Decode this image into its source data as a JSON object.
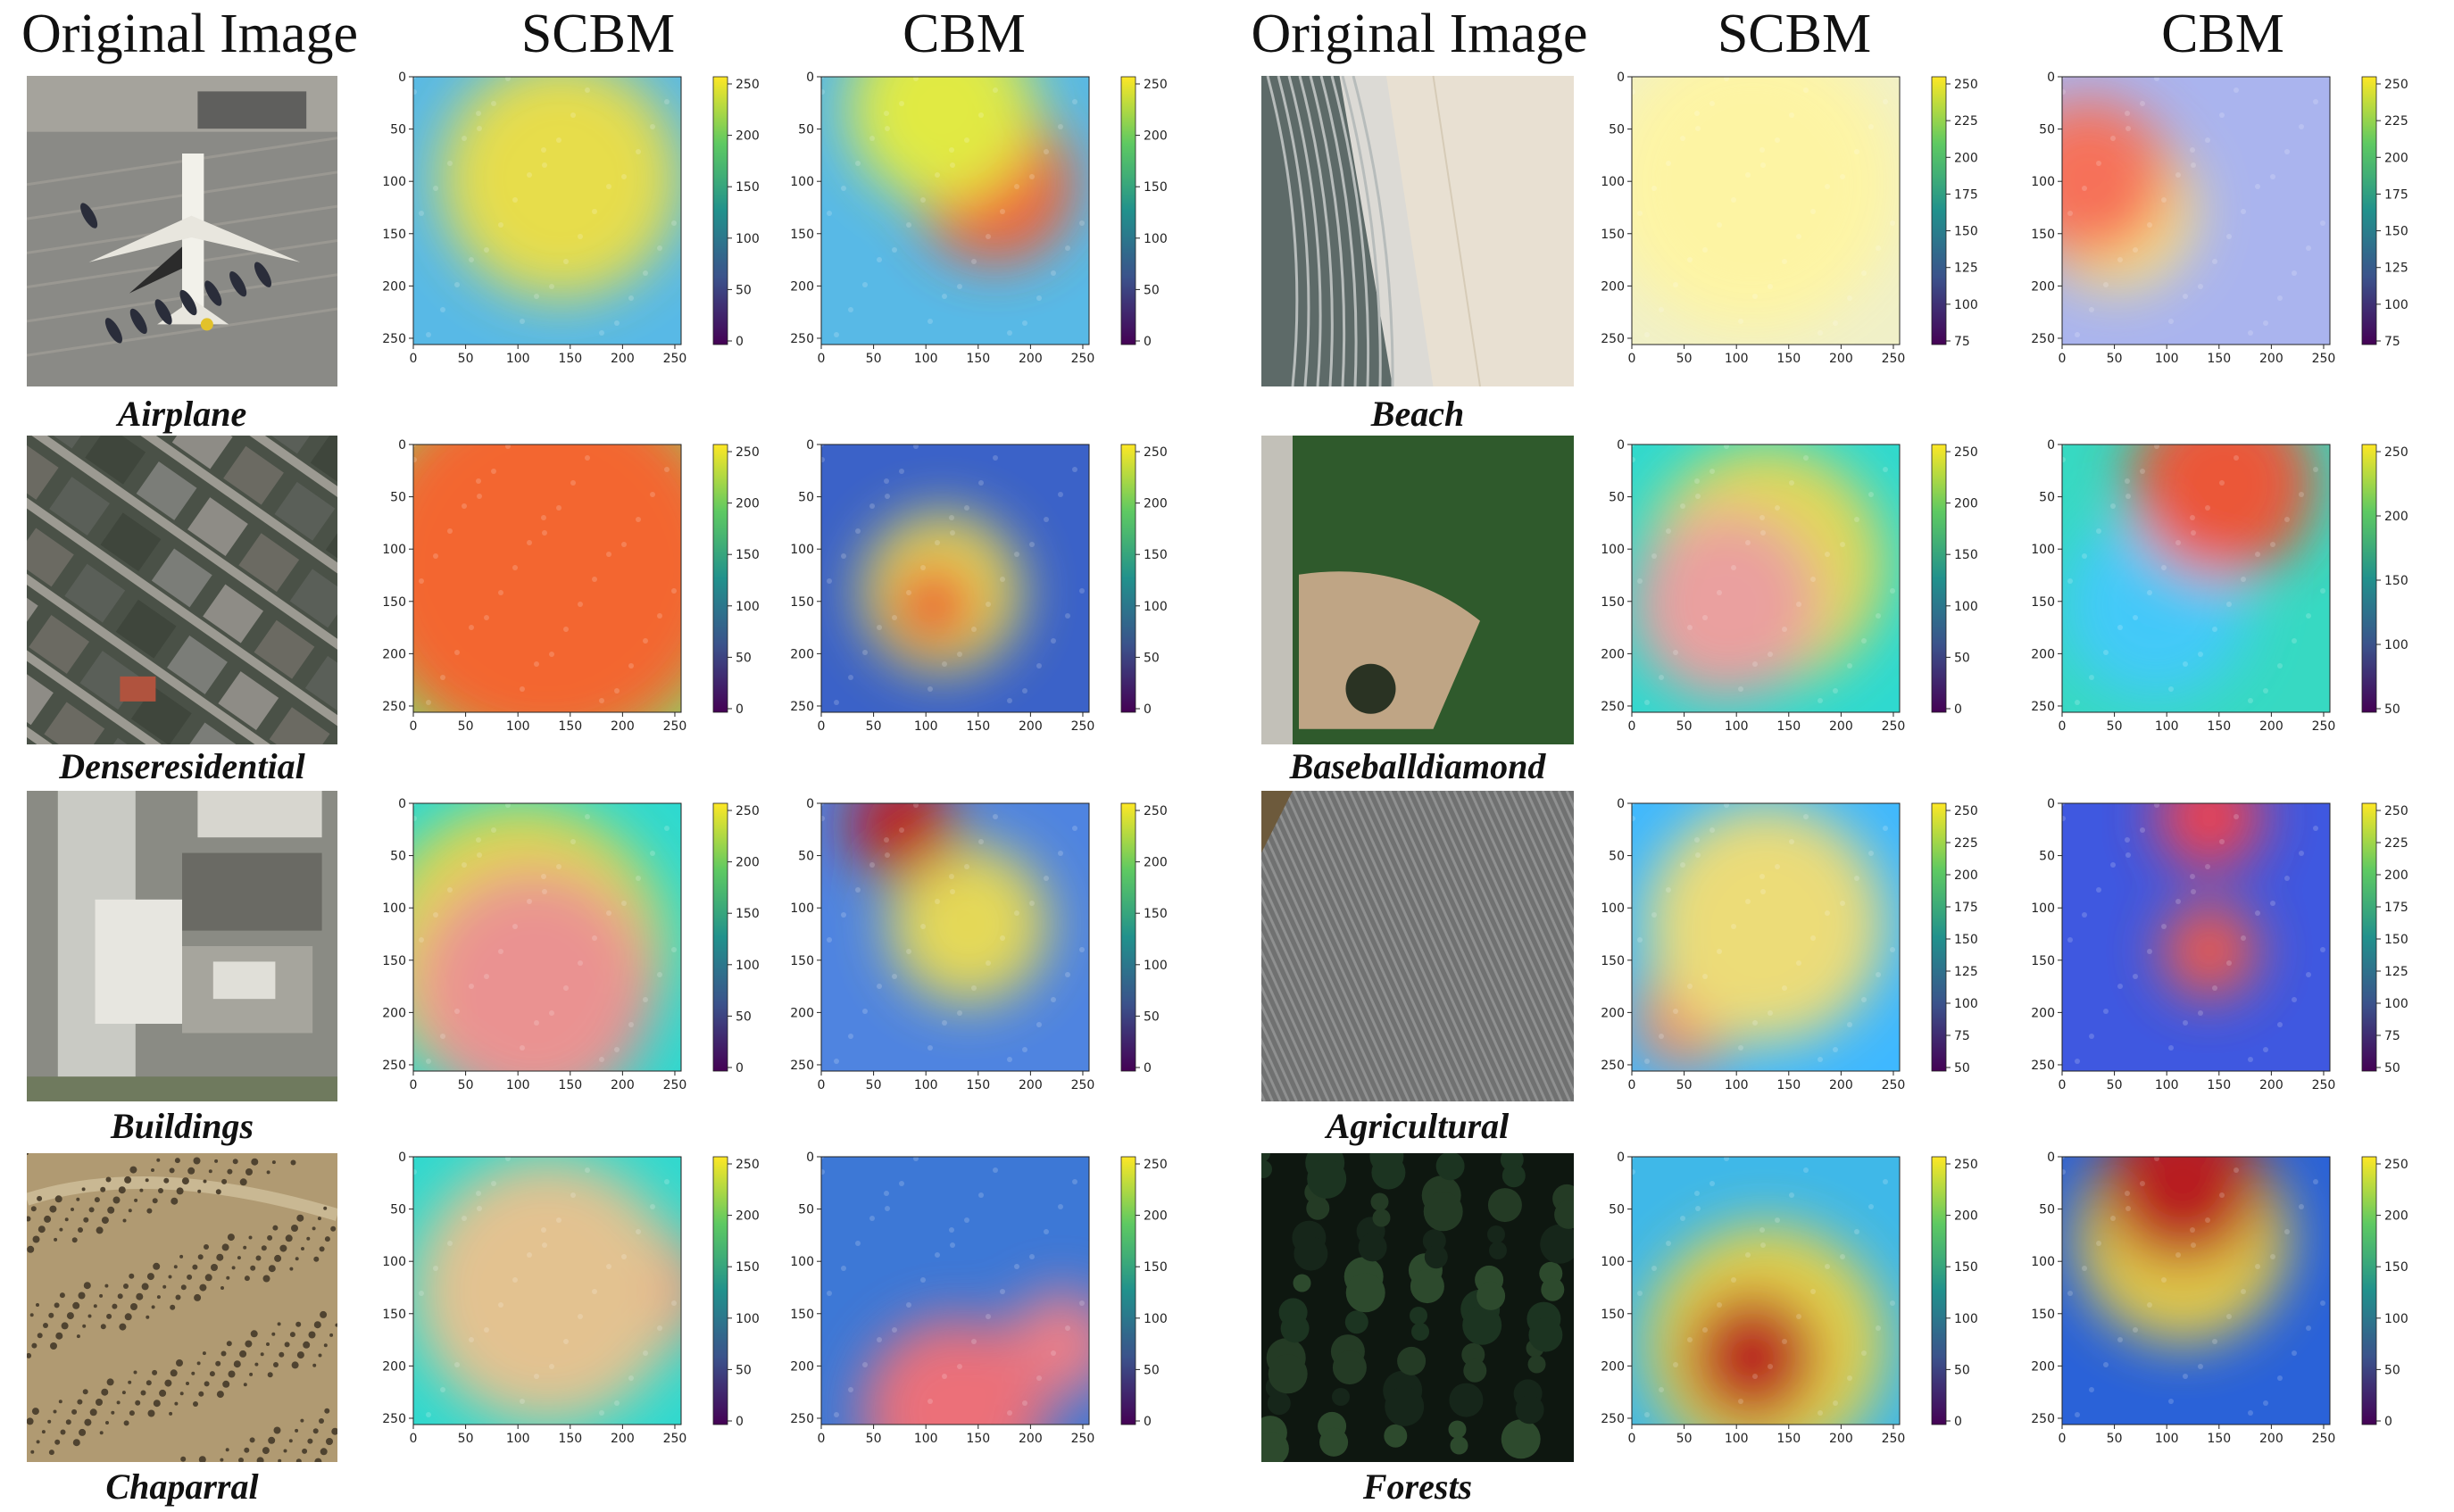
{
  "headers": {
    "left": {
      "original": "Original Image",
      "scbm": "SCBM",
      "cbm": "CBM"
    },
    "right": {
      "original": "Original Image",
      "scbm": "SCBM",
      "cbm": "CBM"
    }
  },
  "rows_left": [
    {
      "class_label": "Airplane",
      "scene": "airplane",
      "scbm": {
        "colorbar_ticks": [
          "250",
          "200",
          "150",
          "100",
          "50",
          "0"
        ],
        "x_ticks": [
          "0",
          "50",
          "100",
          "150",
          "200",
          "250"
        ],
        "y_ticks": [
          "0",
          "50",
          "100",
          "150",
          "200",
          "250"
        ]
      },
      "cbm": {
        "colorbar_ticks": [
          "250",
          "200",
          "150",
          "100",
          "50",
          "0"
        ],
        "x_ticks": [
          "0",
          "50",
          "100",
          "150",
          "200",
          "250"
        ],
        "y_ticks": [
          "0",
          "50",
          "100",
          "150",
          "200",
          "250"
        ]
      }
    },
    {
      "class_label": "Denseresidential",
      "scene": "residential",
      "scbm": {
        "colorbar_ticks": [
          "250",
          "200",
          "150",
          "100",
          "50",
          "0"
        ],
        "x_ticks": [
          "0",
          "50",
          "100",
          "150",
          "200",
          "250"
        ],
        "y_ticks": [
          "0",
          "50",
          "100",
          "150",
          "200",
          "250"
        ]
      },
      "cbm": {
        "colorbar_ticks": [
          "250",
          "200",
          "150",
          "100",
          "50",
          "0"
        ],
        "x_ticks": [
          "0",
          "50",
          "100",
          "150",
          "200",
          "250"
        ],
        "y_ticks": [
          "0",
          "50",
          "100",
          "150",
          "200",
          "250"
        ]
      }
    },
    {
      "class_label": "Buildings",
      "scene": "buildings",
      "scbm": {
        "colorbar_ticks": [
          "250",
          "200",
          "150",
          "100",
          "50",
          "0"
        ],
        "x_ticks": [
          "0",
          "50",
          "100",
          "150",
          "200",
          "250"
        ],
        "y_ticks": [
          "0",
          "50",
          "100",
          "150",
          "200",
          "250"
        ]
      },
      "cbm": {
        "colorbar_ticks": [
          "250",
          "200",
          "150",
          "100",
          "50",
          "0"
        ],
        "x_ticks": [
          "0",
          "50",
          "100",
          "150",
          "200",
          "250"
        ],
        "y_ticks": [
          "0",
          "50",
          "100",
          "150",
          "200",
          "250"
        ]
      }
    },
    {
      "class_label": "Chaparral",
      "scene": "chaparral",
      "scbm": {
        "colorbar_ticks": [
          "250",
          "200",
          "150",
          "100",
          "50",
          "0"
        ],
        "x_ticks": [
          "0",
          "50",
          "100",
          "150",
          "200",
          "250"
        ],
        "y_ticks": [
          "0",
          "50",
          "100",
          "150",
          "200",
          "250"
        ]
      },
      "cbm": {
        "colorbar_ticks": [
          "250",
          "200",
          "150",
          "100",
          "50",
          "0"
        ],
        "x_ticks": [
          "0",
          "50",
          "100",
          "150",
          "200",
          "250"
        ],
        "y_ticks": [
          "0",
          "50",
          "100",
          "150",
          "200",
          "250"
        ]
      }
    }
  ],
  "rows_right": [
    {
      "class_label": "Beach",
      "scene": "beach",
      "scbm": {
        "colorbar_ticks": [
          "250",
          "225",
          "200",
          "175",
          "150",
          "125",
          "100",
          "75"
        ],
        "x_ticks": [
          "0",
          "50",
          "100",
          "150",
          "200",
          "250"
        ],
        "y_ticks": [
          "0",
          "50",
          "100",
          "150",
          "200",
          "250"
        ]
      },
      "cbm": {
        "colorbar_ticks": [
          "250",
          "225",
          "200",
          "175",
          "150",
          "125",
          "100",
          "75"
        ],
        "x_ticks": [
          "0",
          "50",
          "100",
          "150",
          "200",
          "250"
        ],
        "y_ticks": [
          "0",
          "50",
          "100",
          "150",
          "200",
          "250"
        ]
      }
    },
    {
      "class_label": "Baseballdiamond",
      "scene": "baseball",
      "scbm": {
        "colorbar_ticks": [
          "250",
          "200",
          "150",
          "100",
          "50",
          "0"
        ],
        "x_ticks": [
          "0",
          "50",
          "100",
          "150",
          "200",
          "250"
        ],
        "y_ticks": [
          "0",
          "50",
          "100",
          "150",
          "200",
          "250"
        ]
      },
      "cbm": {
        "colorbar_ticks": [
          "250",
          "200",
          "150",
          "100",
          "50"
        ],
        "x_ticks": [
          "0",
          "50",
          "100",
          "150",
          "200",
          "250"
        ],
        "y_ticks": [
          "0",
          "50",
          "100",
          "150",
          "200",
          "250"
        ]
      }
    },
    {
      "class_label": "Agricultural",
      "scene": "agricultural",
      "scbm": {
        "colorbar_ticks": [
          "250",
          "225",
          "200",
          "175",
          "150",
          "125",
          "100",
          "75",
          "50"
        ],
        "x_ticks": [
          "0",
          "50",
          "100",
          "150",
          "200",
          "250"
        ],
        "y_ticks": [
          "0",
          "50",
          "100",
          "150",
          "200",
          "250"
        ]
      },
      "cbm": {
        "colorbar_ticks": [
          "250",
          "225",
          "200",
          "175",
          "150",
          "125",
          "100",
          "75",
          "50"
        ],
        "x_ticks": [
          "0",
          "50",
          "100",
          "150",
          "200",
          "250"
        ],
        "y_ticks": [
          "0",
          "50",
          "100",
          "150",
          "200",
          "250"
        ]
      }
    },
    {
      "class_label": "Forests",
      "scene": "forest",
      "scbm": {
        "colorbar_ticks": [
          "250",
          "200",
          "150",
          "100",
          "50",
          "0"
        ],
        "x_ticks": [
          "0",
          "50",
          "100",
          "150",
          "200",
          "250"
        ],
        "y_ticks": [
          "0",
          "50",
          "100",
          "150",
          "200",
          "250"
        ]
      },
      "cbm": {
        "colorbar_ticks": [
          "250",
          "200",
          "150",
          "100",
          "50",
          "0"
        ],
        "x_ticks": [
          "0",
          "50",
          "100",
          "150",
          "200",
          "250"
        ],
        "y_ticks": [
          "0",
          "50",
          "100",
          "150",
          "200",
          "250"
        ]
      }
    }
  ],
  "colors": {
    "viridis": [
      "#fde725",
      "#5ec962",
      "#21918c",
      "#3b528b",
      "#440154"
    ]
  }
}
